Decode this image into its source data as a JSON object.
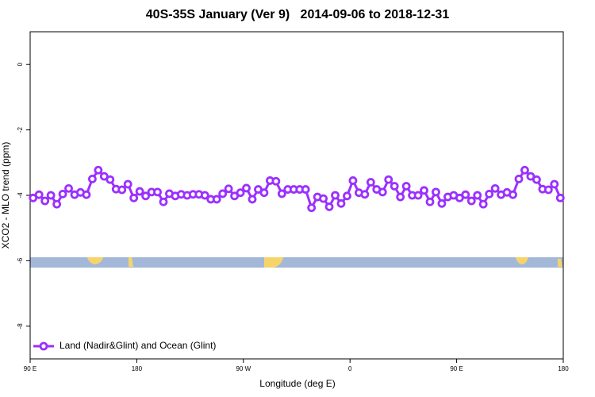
{
  "chart_data": {
    "type": "line",
    "title": "40S-35S January (Ver 9)   2014-09-06 to 2018-12-31",
    "x_label": "Longitude (deg E)",
    "y_label": "XCO2 - MLO trend (ppm)",
    "xlim": [
      90,
      540
    ],
    "xticks": [
      {
        "value": 90,
        "label": "90 E"
      },
      {
        "value": 180,
        "label": "180"
      },
      {
        "value": 270,
        "label": "90 W"
      },
      {
        "value": 360,
        "label": "0"
      },
      {
        "value": 450,
        "label": "90 E"
      },
      {
        "value": 540,
        "label": "180"
      }
    ],
    "ylim": [
      -9,
      1
    ],
    "yticks": [
      0,
      -2,
      -4,
      -6,
      -8
    ],
    "legend": "bottom-left",
    "x": [
      92.5,
      97.5,
      102.5,
      107.5,
      112.5,
      117.5,
      122.5,
      127.5,
      132.5,
      137.5,
      142.5,
      147.5,
      152.5,
      157.5,
      162.5,
      167.5,
      172.5,
      177.5,
      182.5,
      187.5,
      192.5,
      197.5,
      202.5,
      207.5,
      212.5,
      217.5,
      222.5,
      227.5,
      232.5,
      237.5,
      242.5,
      247.5,
      252.5,
      257.5,
      262.5,
      267.5,
      272.5,
      277.5,
      282.5,
      287.5,
      292.5,
      297.5,
      302.5,
      307.5,
      312.5,
      317.5,
      322.5,
      327.5,
      332.5,
      337.5,
      342.5,
      347.5,
      352.5,
      357.5,
      362.5,
      367.5,
      372.5,
      377.5,
      382.5,
      387.5,
      392.5,
      397.5,
      402.5,
      407.5,
      412.5,
      417.5,
      422.5,
      427.5,
      432.5,
      437.5,
      442.5,
      447.5,
      452.5,
      457.5,
      462.5,
      467.5,
      472.5,
      477.5,
      482.5,
      487.5,
      492.5,
      497.5,
      502.5,
      507.5,
      512.5,
      517.5,
      522.5,
      527.5,
      532.5,
      537.5
    ],
    "series": [
      {
        "name": "Land (Nadir&Glint) and Ocean (Glint)",
        "color": "#9b30ff",
        "values": [
          -4.08,
          -3.98,
          -4.17,
          -4.0,
          -4.27,
          -3.96,
          -3.79,
          -3.98,
          -3.91,
          -3.98,
          -3.5,
          -3.23,
          -3.42,
          -3.52,
          -3.81,
          -3.83,
          -3.66,
          -4.08,
          -3.88,
          -4.02,
          -3.9,
          -3.9,
          -4.2,
          -3.95,
          -4.02,
          -3.97,
          -4.0,
          -3.97,
          -3.97,
          -4.0,
          -4.12,
          -4.12,
          -3.95,
          -3.8,
          -4.02,
          -3.92,
          -3.78,
          -4.12,
          -3.82,
          -3.92,
          -3.55,
          -3.57,
          -3.95,
          -3.82,
          -3.82,
          -3.82,
          -3.82,
          -4.38,
          -4.05,
          -4.1,
          -4.35,
          -4.0,
          -4.25,
          -4.02,
          -3.55,
          -3.92,
          -3.97,
          -3.6,
          -3.82,
          -3.9,
          -3.52,
          -3.72,
          -4.05,
          -3.72,
          -4.0,
          -4.0,
          -3.85,
          -4.2,
          -3.9,
          -4.25,
          -4.05,
          -4.0,
          -4.08,
          -3.98,
          -4.17,
          -4.0,
          -4.27,
          -3.96,
          -3.79,
          -3.98,
          -3.91,
          -3.98,
          -3.5,
          -3.23,
          -3.42,
          -3.52,
          -3.81,
          -3.83,
          -3.66,
          -4.08
        ]
      }
    ]
  }
}
